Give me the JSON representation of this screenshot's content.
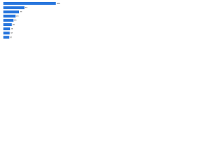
{
  "chart_data": {
    "type": "barh",
    "categories": [
      null,
      null,
      null,
      null,
      null,
      null,
      null,
      null,
      null
    ],
    "values": [
      100,
      40,
      30,
      23,
      19,
      16,
      13,
      12,
      11
    ],
    "color": "#2876dd",
    "xlim": [
      0,
      120
    ]
  }
}
